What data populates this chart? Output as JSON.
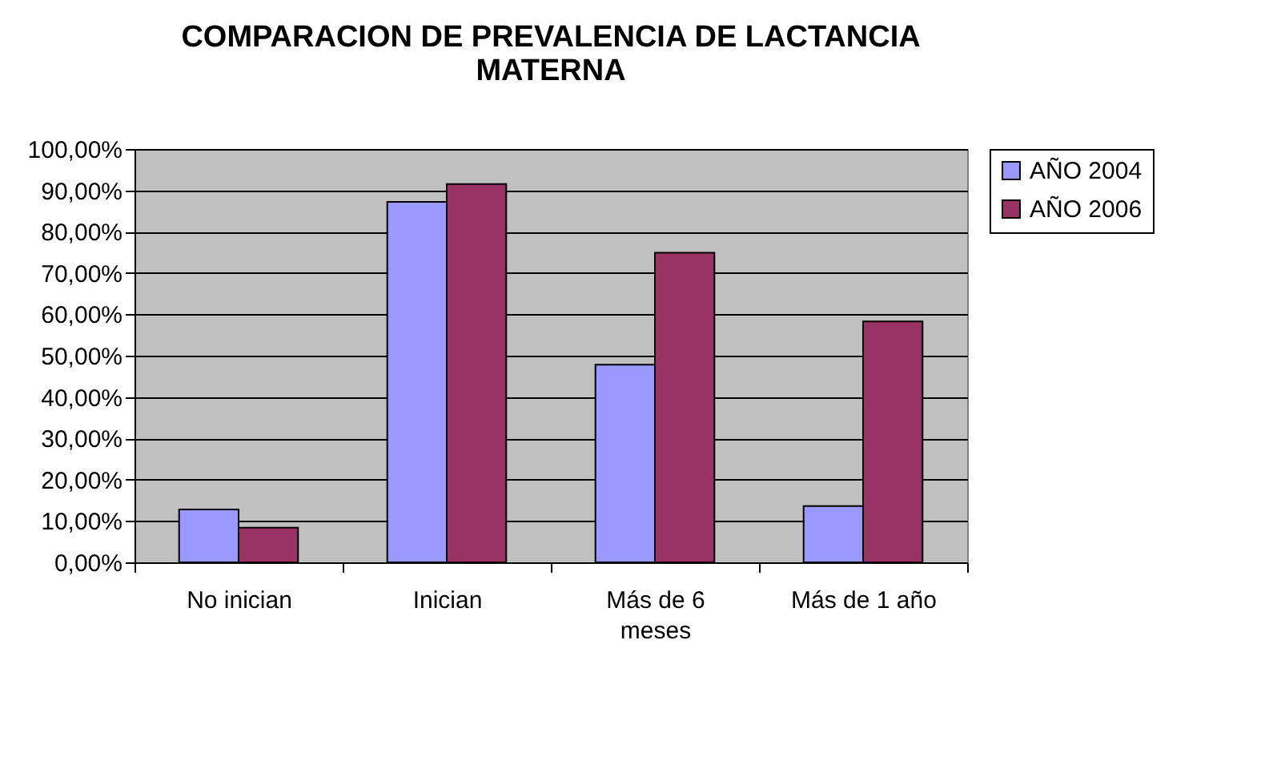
{
  "chart_data": {
    "type": "bar",
    "title": "COMPARACION DE PREVALENCIA DE LACTANCIA MATERNA",
    "categories": [
      "No inician",
      "Inician",
      "Más de 6 meses",
      "Más de 1 año"
    ],
    "series": [
      {
        "name": "AÑO 2004",
        "color": "#9999ff",
        "values": [
          12.8,
          87.2,
          47.8,
          13.6
        ]
      },
      {
        "name": "AÑO 2006",
        "color": "#993366",
        "values": [
          8.4,
          91.5,
          74.9,
          58.3
        ]
      }
    ],
    "ylim": [
      0,
      100
    ],
    "yticks": [
      {
        "value": 0,
        "label": "0,00%"
      },
      {
        "value": 10,
        "label": "10,00%"
      },
      {
        "value": 20,
        "label": "20,00%"
      },
      {
        "value": 30,
        "label": "30,00%"
      },
      {
        "value": 40,
        "label": "40,00%"
      },
      {
        "value": 50,
        "label": "50,00%"
      },
      {
        "value": 60,
        "label": "60,00%"
      },
      {
        "value": 70,
        "label": "70,00%"
      },
      {
        "value": 80,
        "label": "80,00%"
      },
      {
        "value": 90,
        "label": "90,00%"
      },
      {
        "value": 100,
        "label": "100,00%"
      }
    ],
    "grid": "y",
    "legend": "right"
  }
}
